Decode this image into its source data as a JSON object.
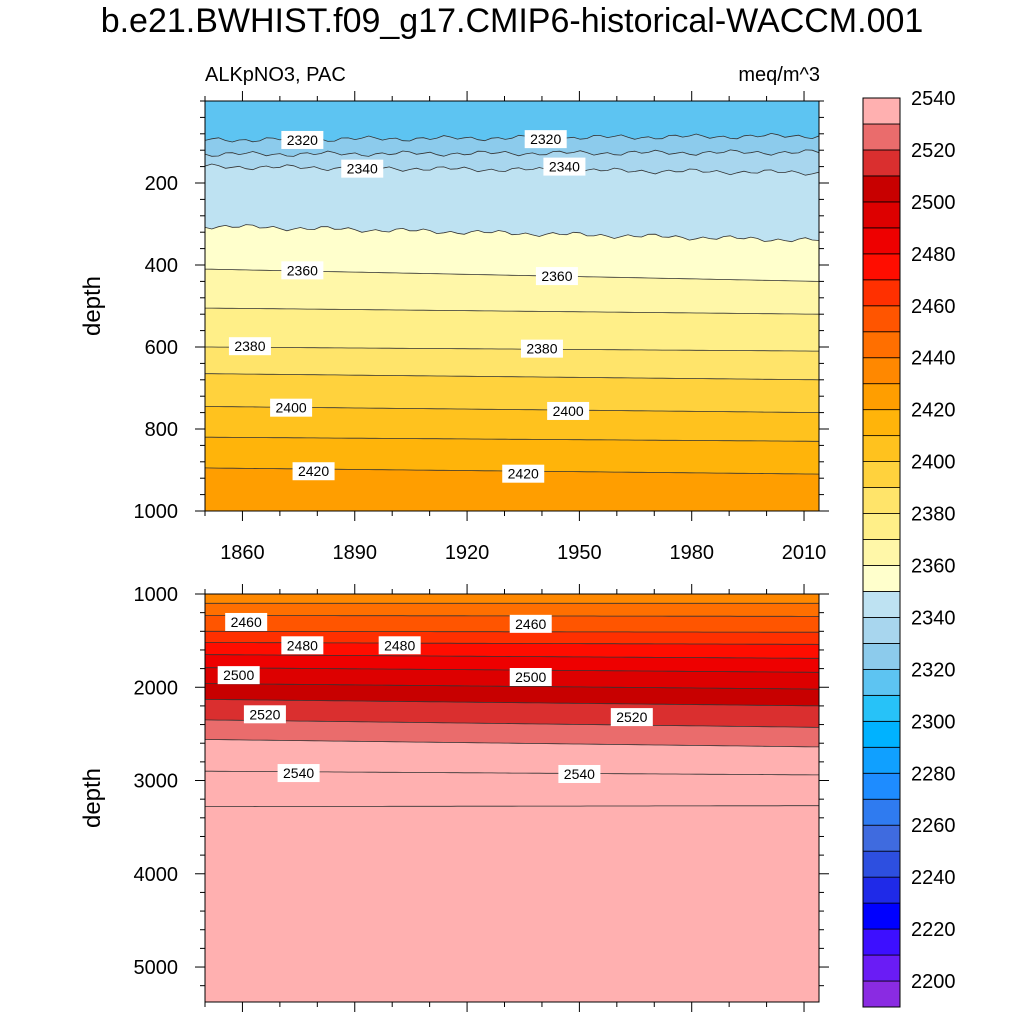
{
  "title": "b.e21.BWHIST.f09_g17.CMIP6-historical-WACCM.001",
  "left_string": "ALKpNO3, PAC",
  "right_string": "meq/m^3",
  "chart_data": [
    {
      "type": "heatmap",
      "panel": "upper",
      "ylabel": "depth",
      "xlabel": "",
      "x_ticks": [
        1860,
        1890,
        1920,
        1950,
        1980,
        2010
      ],
      "y_ticks": [
        200,
        400,
        600,
        800,
        1000
      ],
      "xlim": [
        1850,
        2014
      ],
      "ylim": [
        1000,
        0
      ],
      "contours": [
        {
          "level": 2320,
          "depth_start": 95,
          "depth_end": 85
        },
        {
          "level": 2330,
          "depth_start": 130,
          "depth_end": 125
        },
        {
          "level": 2340,
          "depth_start": 160,
          "depth_end": 175
        },
        {
          "level": 2350,
          "depth_start": 305,
          "depth_end": 340
        },
        {
          "level": 2360,
          "depth_start": 410,
          "depth_end": 440
        },
        {
          "level": 2370,
          "depth_start": 505,
          "depth_end": 520
        },
        {
          "level": 2380,
          "depth_start": 600,
          "depth_end": 610
        },
        {
          "level": 2390,
          "depth_start": 665,
          "depth_end": 680
        },
        {
          "level": 2400,
          "depth_start": 745,
          "depth_end": 760
        },
        {
          "level": 2410,
          "depth_start": 820,
          "depth_end": 830
        },
        {
          "level": 2420,
          "depth_start": 895,
          "depth_end": 910
        },
        {
          "level": 2430,
          "depth_start": 1000,
          "depth_end": 1000
        }
      ],
      "contour_labels": [
        {
          "text": "2320",
          "year": 1876,
          "depth": 95
        },
        {
          "text": "2320",
          "year": 1941,
          "depth": 93
        },
        {
          "text": "2340",
          "year": 1892,
          "depth": 165
        },
        {
          "text": "2340",
          "year": 1946,
          "depth": 160
        },
        {
          "text": "2360",
          "year": 1876,
          "depth": 413
        },
        {
          "text": "2360",
          "year": 1944,
          "depth": 427
        },
        {
          "text": "2380",
          "year": 1862,
          "depth": 598
        },
        {
          "text": "2380",
          "year": 1940,
          "depth": 604
        },
        {
          "text": "2400",
          "year": 1873,
          "depth": 748
        },
        {
          "text": "2400",
          "year": 1947,
          "depth": 756
        },
        {
          "text": "2420",
          "year": 1879,
          "depth": 903
        },
        {
          "text": "2420",
          "year": 1935,
          "depth": 909
        }
      ]
    },
    {
      "type": "heatmap",
      "panel": "lower",
      "ylabel": "depth",
      "xlabel": "",
      "y_ticks": [
        1000,
        2000,
        3000,
        4000,
        5000
      ],
      "xlim": [
        1850,
        2014
      ],
      "ylim": [
        5375,
        1000
      ],
      "contours": [
        {
          "level": 2440,
          "depth_start": 1100,
          "depth_end": 1100
        },
        {
          "level": 2450,
          "depth_start": 1230,
          "depth_end": 1240
        },
        {
          "level": 2460,
          "depth_start": 1400,
          "depth_end": 1410
        },
        {
          "level": 2470,
          "depth_start": 1520,
          "depth_end": 1540
        },
        {
          "level": 2480,
          "depth_start": 1650,
          "depth_end": 1690
        },
        {
          "level": 2490,
          "depth_start": 1790,
          "depth_end": 1840
        },
        {
          "level": 2500,
          "depth_start": 1960,
          "depth_end": 2020
        },
        {
          "level": 2510,
          "depth_start": 2130,
          "depth_end": 2200
        },
        {
          "level": 2520,
          "depth_start": 2350,
          "depth_end": 2430
        },
        {
          "level": 2530,
          "depth_start": 2560,
          "depth_end": 2640
        },
        {
          "level": 2540,
          "depth_start": 2900,
          "depth_end": 2940
        },
        {
          "level": 2550,
          "depth_start": 3280,
          "depth_end": 3270
        }
      ],
      "contour_labels": [
        {
          "text": "2460",
          "year": 1861,
          "depth": 1300
        },
        {
          "text": "2460",
          "year": 1937,
          "depth": 1320
        },
        {
          "text": "2480",
          "year": 1876,
          "depth": 1550
        },
        {
          "text": "2480",
          "year": 1902,
          "depth": 1550
        },
        {
          "text": "2500",
          "year": 1859,
          "depth": 1870
        },
        {
          "text": "2500",
          "year": 1937,
          "depth": 1890
        },
        {
          "text": "2520",
          "year": 1866,
          "depth": 2290
        },
        {
          "text": "2520",
          "year": 1964,
          "depth": 2320
        },
        {
          "text": "2540",
          "year": 1875,
          "depth": 2920
        },
        {
          "text": "2540",
          "year": 1950,
          "depth": 2930
        }
      ]
    }
  ],
  "colorbar": {
    "labels": [
      "2200",
      "2220",
      "2240",
      "2260",
      "2280",
      "2300",
      "2320",
      "2340",
      "2360",
      "2380",
      "2400",
      "2420",
      "2440",
      "2460",
      "2480",
      "2500",
      "2520",
      "2540"
    ],
    "colors": [
      "#8a2be2",
      "#6a1cf5",
      "#3d0fff",
      "#0000ff",
      "#1f2ae8",
      "#2d4fe0",
      "#3f6bdf",
      "#2f7bf0",
      "#1e8cff",
      "#10a0ff",
      "#00b2ff",
      "#27c2f8",
      "#5dc4f2",
      "#8ccbec",
      "#a8d6ee",
      "#bee2f2",
      "#ffffcc",
      "#fff7a8",
      "#ffef88",
      "#ffe46a",
      "#ffd23d",
      "#ffc21e",
      "#ffb40a",
      "#ff9e00",
      "#ff8800",
      "#ff6f00",
      "#ff5500",
      "#ff3000",
      "#ff0d00",
      "#ee0000",
      "#dd0000",
      "#c80000",
      "#da2f2f",
      "#ea6c6c",
      "#ffb0b0"
    ]
  }
}
